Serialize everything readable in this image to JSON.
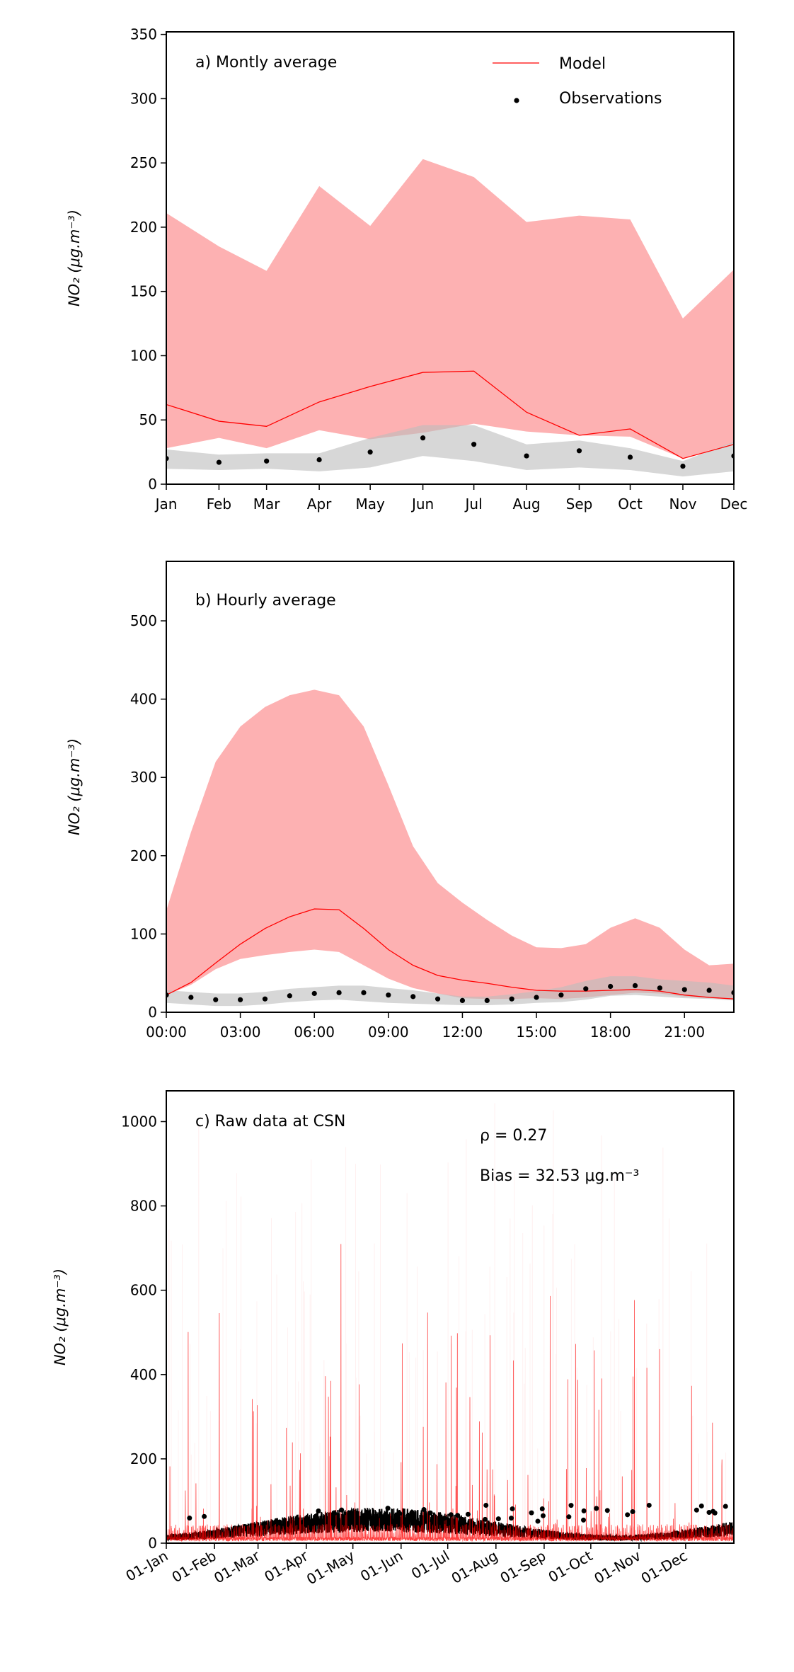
{
  "chart_data": [
    {
      "type": "line",
      "title": "a) Montly average",
      "ylabel": "NO₂ (μg.m⁻³)",
      "ylim": [
        0,
        352
      ],
      "yticks": [
        0,
        50,
        100,
        150,
        200,
        250,
        300,
        350
      ],
      "xlim": [
        0,
        334
      ],
      "categories": [
        "Jan",
        "Feb",
        "Mar",
        "Apr",
        "May",
        "Jun",
        "Jul",
        "Aug",
        "Sep",
        "Oct",
        "Nov",
        "Dec"
      ],
      "x": [
        0,
        31,
        59,
        90,
        120,
        151,
        181,
        212,
        243,
        273,
        304,
        334
      ],
      "legend": {
        "placement": "top-right",
        "entries": [
          "Model",
          "Observations"
        ]
      },
      "series": [
        {
          "name": "Model",
          "values": [
            62,
            49,
            45,
            64,
            76,
            87,
            88,
            56,
            38,
            43,
            20,
            31
          ],
          "upper": [
            211,
            185,
            166,
            232,
            201,
            253,
            239,
            204,
            209,
            206,
            129,
            167
          ],
          "lower": [
            28,
            36,
            28,
            42,
            35,
            40,
            47,
            41,
            38,
            37,
            20,
            32
          ]
        },
        {
          "name": "Observations",
          "values": [
            20,
            17,
            18,
            19,
            25,
            36,
            31,
            22,
            26,
            21,
            14,
            22
          ],
          "upper": [
            27,
            23,
            24,
            24,
            36,
            46,
            46,
            31,
            34,
            28,
            18,
            33
          ],
          "lower": [
            12,
            11,
            12,
            10,
            13,
            22,
            18,
            11,
            13,
            11,
            6,
            10
          ]
        }
      ]
    },
    {
      "type": "line",
      "title": "b) Hourly average",
      "ylabel": "NO₂ (μg.m⁻³)",
      "ylim": [
        0,
        576
      ],
      "yticks": [
        0,
        100,
        200,
        300,
        400,
        500
      ],
      "xlim": [
        0,
        23
      ],
      "xticks": [
        0,
        3,
        6,
        9,
        12,
        15,
        18,
        21
      ],
      "xticklabels": [
        "00:00",
        "03:00",
        "06:00",
        "09:00",
        "12:00",
        "15:00",
        "18:00",
        "21:00"
      ],
      "x": [
        0,
        1,
        2,
        3,
        4,
        5,
        6,
        7,
        8,
        9,
        10,
        11,
        12,
        13,
        14,
        15,
        16,
        17,
        18,
        19,
        20,
        21,
        22,
        23
      ],
      "series": [
        {
          "name": "Model",
          "values": [
            22,
            38,
            63,
            87,
            107,
            122,
            132,
            131,
            107,
            80,
            60,
            47,
            41,
            37,
            32,
            28,
            27,
            27,
            28,
            29,
            27,
            22,
            19,
            17
          ],
          "upper": [
            130,
            230,
            320,
            365,
            390,
            405,
            412,
            405,
            365,
            290,
            212,
            165,
            140,
            118,
            98,
            83,
            82,
            87,
            108,
            120,
            108,
            80,
            60,
            62
          ],
          "lower": [
            22,
            35,
            55,
            68,
            73,
            77,
            80,
            77,
            60,
            43,
            31,
            24,
            18,
            17,
            17,
            18,
            17,
            19,
            22,
            25,
            24,
            20,
            18,
            17
          ]
        },
        {
          "name": "Observations",
          "values": [
            22,
            19,
            16,
            16,
            17,
            21,
            24,
            25,
            25,
            22,
            20,
            17,
            15,
            15,
            17,
            19,
            22,
            30,
            33,
            34,
            31,
            29,
            28,
            25
          ],
          "upper": [
            28,
            26,
            24,
            24,
            26,
            30,
            32,
            34,
            34,
            31,
            28,
            24,
            20,
            20,
            23,
            27,
            32,
            40,
            46,
            46,
            42,
            40,
            38,
            34
          ],
          "lower": [
            12,
            10,
            8,
            8,
            10,
            13,
            15,
            16,
            14,
            12,
            11,
            10,
            9,
            9,
            10,
            12,
            13,
            16,
            21,
            22,
            20,
            18,
            17,
            15
          ]
        }
      ]
    },
    {
      "type": "line",
      "title": "c) Raw data at CSN",
      "rho_label": "ρ = 0.27",
      "bias_label": "Bias = 32.53 μg.m⁻³",
      "ylabel": "NO₂ (μg.m⁻³)",
      "ylim": [
        0,
        1073
      ],
      "yticks": [
        0,
        200,
        400,
        600,
        800,
        1000
      ],
      "xlim": [
        0,
        365
      ],
      "xticks": [
        0,
        31,
        59,
        90,
        120,
        151,
        181,
        212,
        243,
        273,
        304,
        334
      ],
      "xticklabels": [
        "01-Jan",
        "01-Feb",
        "01-Mar",
        "01-Apr",
        "01-May",
        "01-Jun",
        "01-Jul",
        "01-Aug",
        "01-Sep",
        "01-Oct",
        "01-Nov",
        "01-Dec"
      ],
      "series": [
        {
          "name": "Model"
        },
        {
          "name": "Observations"
        }
      ]
    }
  ],
  "colors": {
    "model": "#ff0000",
    "model_band": "#fdb1b2",
    "obs": "#000000",
    "obs_band": "#bdbdbd"
  }
}
